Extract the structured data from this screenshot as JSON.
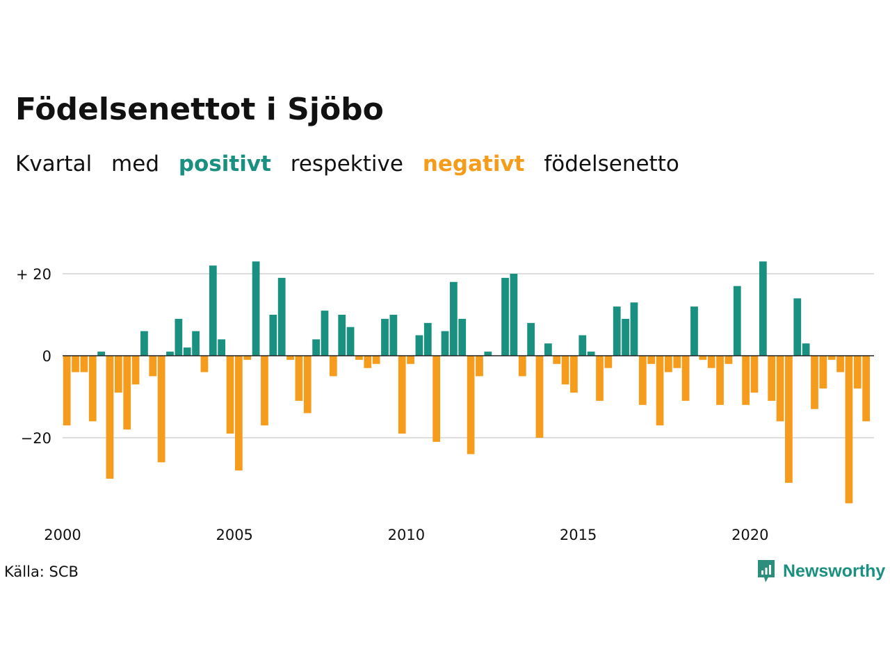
{
  "title": "Födelsenettot i Sjöbo",
  "subtitle": {
    "word1": "Kvartal",
    "word2": "med",
    "positive": "positivt",
    "word3": "respektive",
    "negative": "negativt",
    "word4": "födelsenetto"
  },
  "source": "Källa: SCB",
  "logo": {
    "text": "Newsworthy",
    "icon": "bar-chart-speech-bubble-icon"
  },
  "colors": {
    "positive": "#1a9080",
    "negative": "#f59c1c",
    "text": "#111111",
    "grid": "#dddddd",
    "zero_line": "#222222"
  },
  "chart_data": {
    "type": "bar",
    "title": "Födelsenettot i Sjöbo",
    "xlabel": "",
    "ylabel": "",
    "ylim": [
      -40,
      25
    ],
    "grid": true,
    "y_ticks": [
      {
        "value": 20,
        "label": "+ 20"
      },
      {
        "value": 0,
        "label": "0"
      },
      {
        "value": -20,
        "label": "−20"
      }
    ],
    "x_ticks": [
      {
        "value": 2000,
        "label": "2000"
      },
      {
        "value": 2005,
        "label": "2005"
      },
      {
        "value": 2010,
        "label": "2010"
      },
      {
        "value": 2015,
        "label": "2015"
      },
      {
        "value": 2020,
        "label": "2020"
      }
    ],
    "start_year": 2000,
    "values": [
      -17,
      -4,
      -4,
      -16,
      1,
      -30,
      -9,
      -18,
      -7,
      6,
      -5,
      -26,
      1,
      9,
      2,
      6,
      -4,
      22,
      4,
      -19,
      -28,
      -1,
      23,
      -17,
      10,
      19,
      -1,
      -11,
      -14,
      4,
      11,
      -5,
      10,
      7,
      -1,
      -3,
      -2,
      9,
      10,
      -19,
      -2,
      5,
      8,
      -21,
      6,
      18,
      9,
      -24,
      -5,
      1,
      0,
      19,
      20,
      -5,
      8,
      -20,
      3,
      -2,
      -7,
      -9,
      5,
      1,
      -11,
      -3,
      12,
      9,
      13,
      -12,
      -2,
      -17,
      -4,
      -3,
      -11,
      12,
      -1,
      -3,
      -12,
      -2,
      17,
      -12,
      -9,
      23,
      -11,
      -16,
      -31,
      14,
      3,
      -13,
      -8,
      -1,
      -4,
      -36,
      -8,
      -16
    ]
  }
}
